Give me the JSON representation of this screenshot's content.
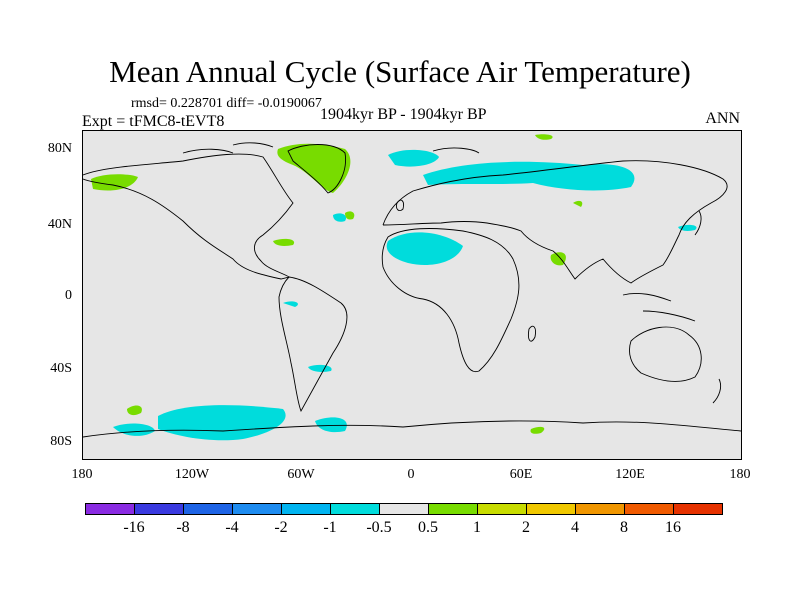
{
  "title": "Mean Annual Cycle (Surface Air Temperature)",
  "stats_text": "rmsd= 0.228701  diff= -0.0190067",
  "experiment": "Expt = tFMC8-tEVT8",
  "period": "1904kyr BP - 1904kyr BP",
  "season": "ANN",
  "y_axis_labels": [
    "80N",
    "40N",
    "0",
    "40S",
    "80S"
  ],
  "x_axis_labels": [
    "180",
    "120W",
    "60W",
    "0",
    "60E",
    "120E",
    "180"
  ],
  "colorbar": {
    "colors": [
      "#8a2be2",
      "#3a3ae0",
      "#1e64e6",
      "#1e8cf0",
      "#00b4f0",
      "#00dcdc",
      "#e6e6e6",
      "#78dc00",
      "#c8dc00",
      "#f0c800",
      "#f09600",
      "#f05a00",
      "#e63200"
    ],
    "labels": [
      "-16",
      "-8",
      "-4",
      "-2",
      "-1",
      "-0.5",
      "0.5",
      "1",
      "2",
      "4",
      "8",
      "16"
    ]
  },
  "palette": {
    "ocean_land_bg": "#e6e6e6",
    "cool": "#00dcdc",
    "warm": "#78dc00"
  }
}
